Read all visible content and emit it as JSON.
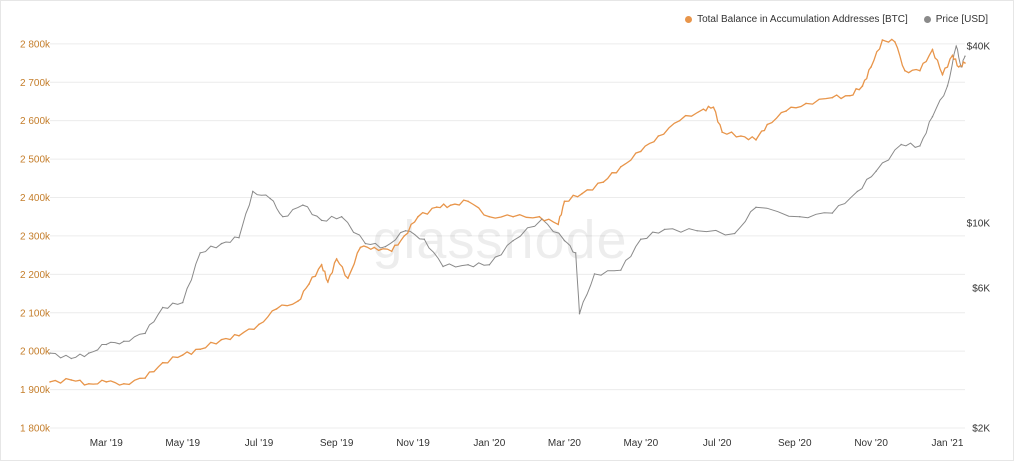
{
  "legend": {
    "balance_label": "Total Balance in Accumulation Addresses [BTC]",
    "price_label": "Price [USD]"
  },
  "watermark": "glassnode",
  "colors": {
    "balance": "#e8954a",
    "price": "#8a8a8a",
    "left_ticks": "#c47d2a",
    "grid": "#ececec"
  },
  "chart_data": {
    "type": "line",
    "x_ticks": [
      "Mar '19",
      "May '19",
      "Jul '19",
      "Sep '19",
      "Nov '19",
      "Jan '20",
      "Mar '20",
      "May '20",
      "Jul '20",
      "Sep '20",
      "Nov '20",
      "Jan '21"
    ],
    "x_range": [
      "2019-01-15",
      "2021-01-15"
    ],
    "y_left": {
      "label": "",
      "ticks": [
        1800000,
        1900000,
        2000000,
        2100000,
        2200000,
        2300000,
        2400000,
        2500000,
        2600000,
        2700000,
        2800000
      ],
      "tick_labels": [
        "1 800k",
        "1 900k",
        "2 000k",
        "2 100k",
        "2 200k",
        "2 300k",
        "2 400k",
        "2 500k",
        "2 600k",
        "2 700k",
        "2 800k"
      ],
      "range": [
        1800000,
        2810000
      ]
    },
    "y_right": {
      "label": "",
      "scale": "log",
      "ticks": [
        2000,
        6000,
        10000,
        40000
      ],
      "tick_labels": [
        "$2K",
        "$6K",
        "$10K",
        "$40K"
      ],
      "range": [
        2000,
        42000
      ]
    },
    "grid": true,
    "legend_position": "top-right",
    "series": [
      {
        "name": "Total Balance in Accumulation Addresses [BTC]",
        "axis": "left",
        "points": [
          [
            "2019-01-15",
            1920000
          ],
          [
            "2019-02-01",
            1925000
          ],
          [
            "2019-02-15",
            1915000
          ],
          [
            "2019-03-01",
            1920000
          ],
          [
            "2019-03-15",
            1915000
          ],
          [
            "2019-04-01",
            1930000
          ],
          [
            "2019-04-15",
            1970000
          ],
          [
            "2019-05-01",
            1990000
          ],
          [
            "2019-05-15",
            2005000
          ],
          [
            "2019-06-01",
            2030000
          ],
          [
            "2019-06-15",
            2040000
          ],
          [
            "2019-07-01",
            2070000
          ],
          [
            "2019-07-15",
            2110000
          ],
          [
            "2019-08-01",
            2130000
          ],
          [
            "2019-08-10",
            2175000
          ],
          [
            "2019-08-20",
            2225000
          ],
          [
            "2019-08-25",
            2180000
          ],
          [
            "2019-09-01",
            2240000
          ],
          [
            "2019-09-10",
            2190000
          ],
          [
            "2019-09-20",
            2270000
          ],
          [
            "2019-10-01",
            2270000
          ],
          [
            "2019-10-15",
            2260000
          ],
          [
            "2019-10-25",
            2300000
          ],
          [
            "2019-11-05",
            2350000
          ],
          [
            "2019-11-20",
            2375000
          ],
          [
            "2019-12-01",
            2380000
          ],
          [
            "2019-12-15",
            2390000
          ],
          [
            "2020-01-01",
            2350000
          ],
          [
            "2020-01-20",
            2350000
          ],
          [
            "2020-02-10",
            2350000
          ],
          [
            "2020-02-25",
            2330000
          ],
          [
            "2020-03-01",
            2390000
          ],
          [
            "2020-03-15",
            2410000
          ],
          [
            "2020-04-01",
            2440000
          ],
          [
            "2020-04-15",
            2480000
          ],
          [
            "2020-05-01",
            2520000
          ],
          [
            "2020-05-15",
            2560000
          ],
          [
            "2020-06-01",
            2600000
          ],
          [
            "2020-06-20",
            2630000
          ],
          [
            "2020-06-28",
            2635000
          ],
          [
            "2020-07-05",
            2570000
          ],
          [
            "2020-07-20",
            2560000
          ],
          [
            "2020-08-01",
            2550000
          ],
          [
            "2020-08-10",
            2590000
          ],
          [
            "2020-08-25",
            2625000
          ],
          [
            "2020-09-10",
            2645000
          ],
          [
            "2020-10-01",
            2660000
          ],
          [
            "2020-10-15",
            2665000
          ],
          [
            "2020-10-25",
            2690000
          ],
          [
            "2020-11-01",
            2740000
          ],
          [
            "2020-11-10",
            2810000
          ],
          [
            "2020-11-20",
            2805000
          ],
          [
            "2020-11-28",
            2730000
          ],
          [
            "2020-12-10",
            2730000
          ],
          [
            "2020-12-20",
            2785000
          ],
          [
            "2020-12-28",
            2720000
          ],
          [
            "2021-01-05",
            2770000
          ],
          [
            "2021-01-10",
            2740000
          ],
          [
            "2021-01-15",
            2750000
          ]
        ]
      },
      {
        "name": "Price [USD]",
        "axis": "right",
        "points": [
          [
            "2019-01-15",
            3600
          ],
          [
            "2019-02-01",
            3450
          ],
          [
            "2019-02-15",
            3600
          ],
          [
            "2019-03-01",
            3850
          ],
          [
            "2019-03-15",
            3950
          ],
          [
            "2019-04-01",
            4200
          ],
          [
            "2019-04-15",
            5150
          ],
          [
            "2019-05-01",
            5350
          ],
          [
            "2019-05-15",
            7900
          ],
          [
            "2019-06-01",
            8500
          ],
          [
            "2019-06-15",
            8900
          ],
          [
            "2019-06-26",
            12800
          ],
          [
            "2019-07-10",
            12100
          ],
          [
            "2019-07-20",
            10500
          ],
          [
            "2019-08-05",
            11500
          ],
          [
            "2019-08-20",
            10200
          ],
          [
            "2019-09-05",
            10500
          ],
          [
            "2019-09-24",
            8500
          ],
          [
            "2019-10-10",
            8300
          ],
          [
            "2019-10-26",
            9400
          ],
          [
            "2019-11-10",
            8800
          ],
          [
            "2019-11-25",
            7100
          ],
          [
            "2019-12-15",
            7200
          ],
          [
            "2020-01-01",
            7200
          ],
          [
            "2020-01-20",
            8700
          ],
          [
            "2020-02-12",
            10300
          ],
          [
            "2020-03-01",
            8700
          ],
          [
            "2020-03-10",
            7900
          ],
          [
            "2020-03-13",
            4900
          ],
          [
            "2020-03-25",
            6700
          ],
          [
            "2020-04-15",
            6900
          ],
          [
            "2020-05-01",
            8800
          ],
          [
            "2020-05-20",
            9500
          ],
          [
            "2020-06-15",
            9400
          ],
          [
            "2020-07-15",
            9200
          ],
          [
            "2020-08-01",
            11300
          ],
          [
            "2020-09-05",
            10500
          ],
          [
            "2020-10-01",
            10800
          ],
          [
            "2020-10-21",
            12800
          ],
          [
            "2020-11-05",
            15000
          ],
          [
            "2020-11-25",
            18500
          ],
          [
            "2020-12-10",
            18300
          ],
          [
            "2020-12-20",
            23000
          ],
          [
            "2021-01-01",
            29300
          ],
          [
            "2021-01-08",
            40000
          ],
          [
            "2021-01-12",
            34000
          ],
          [
            "2021-01-15",
            37000
          ]
        ]
      }
    ]
  }
}
